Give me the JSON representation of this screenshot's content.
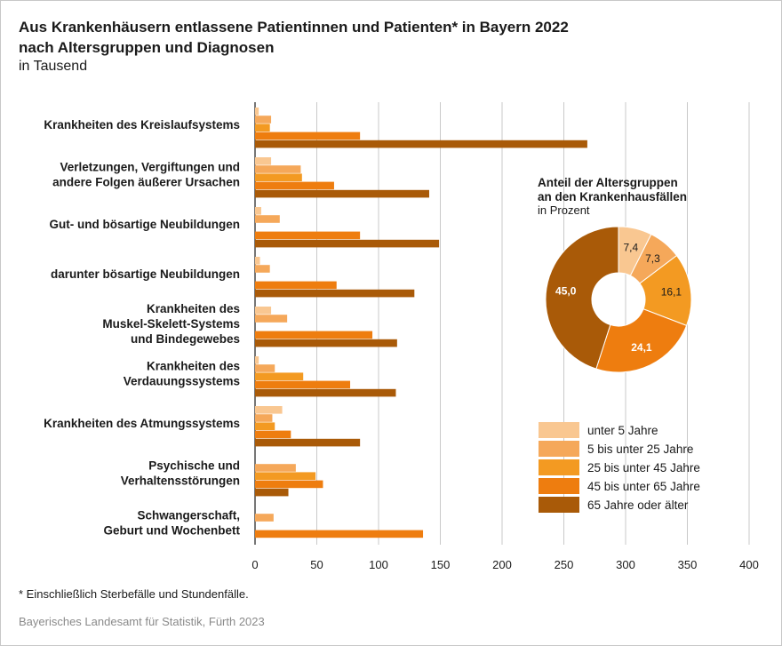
{
  "title_line1": "Aus Krankenhäusern entlassene Patientinnen und Patienten* in Bayern 2022",
  "title_line2": "nach Altersgruppen und Diagnosen",
  "subtitle": "in Tausend",
  "footnote": "* Einschließlich Sterbefälle und Stundenfälle.",
  "source": "Bayerisches Landesamt für Statistik, Fürth 2023",
  "colors": {
    "unter_5": "#f9c791",
    "5_25": "#f5a85a",
    "25_45": "#f39a22",
    "45_65": "#ee7d0f",
    "65_plus": "#a95a08"
  },
  "chart_data": [
    {
      "type": "bar",
      "orientation": "horizontal",
      "unit": "Tausend",
      "xlim": [
        0,
        400
      ],
      "xticks": [
        "0",
        "50",
        "100",
        "150",
        "200",
        "250",
        "300",
        "350",
        "400"
      ],
      "grid": "vertical",
      "categories": [
        [
          "Krankheiten des Kreislaufsystems"
        ],
        [
          "Verletzungen, Vergiftungen und",
          "andere Folgen äußerer Ursachen"
        ],
        [
          "Gut- und bösartige Neubildungen"
        ],
        [
          "darunter bösartige Neubildungen"
        ],
        [
          "Krankheiten des",
          "Muskel-Skelett-Systems",
          "und Bindegewebes"
        ],
        [
          "Krankheiten des",
          "Verdauungssystems"
        ],
        [
          "Krankheiten des Atmungssystems"
        ],
        [
          "Psychische und",
          "Verhaltensstörungen"
        ],
        [
          "Schwangerschaft,",
          "Geburt und Wochenbett"
        ]
      ],
      "series": [
        {
          "name": "unter 5 Jahre",
          "values": [
            3,
            13,
            5,
            4,
            13,
            3,
            22,
            0,
            0
          ]
        },
        {
          "name": "5 bis unter 25 Jahre",
          "values": [
            13,
            37,
            20,
            12,
            26,
            16,
            14,
            33,
            15
          ]
        },
        {
          "name": "25 bis unter 45 Jahre",
          "values": [
            12,
            38,
            0,
            0,
            0,
            39,
            16,
            49,
            0
          ]
        },
        {
          "name": "45 bis unter 65 Jahre",
          "values": [
            85,
            64,
            85,
            66,
            95,
            77,
            29,
            55,
            136
          ]
        },
        {
          "name": "65 Jahre oder älter",
          "values": [
            269,
            141,
            149,
            129,
            115,
            114,
            85,
            27,
            0
          ]
        }
      ],
      "legend": "bottom-right"
    },
    {
      "type": "pie",
      "style": "donut",
      "title_line1": "Anteil der Altersgruppen",
      "title_line2": "an den Krankenhausfällen",
      "subtitle": "in Prozent",
      "slices": [
        {
          "name": "unter 5 Jahre",
          "value": 7.4,
          "label": "7,4"
        },
        {
          "name": "5 bis unter 25 Jahre",
          "value": 7.3,
          "label": "7,3"
        },
        {
          "name": "25 bis unter 45 Jahre",
          "value": 16.1,
          "label": "16,1"
        },
        {
          "name": "45 bis unter 65 Jahre",
          "value": 24.1,
          "label": "24,1"
        },
        {
          "name": "65 Jahre oder älter",
          "value": 45.0,
          "label": "45,0"
        }
      ]
    }
  ]
}
